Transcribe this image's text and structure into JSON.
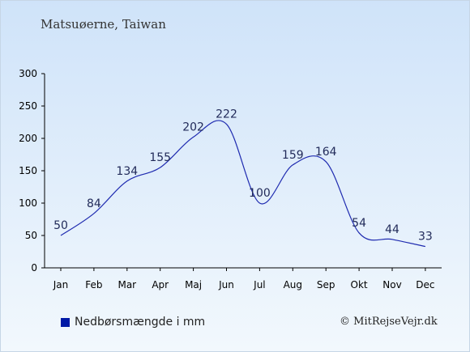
{
  "page": {
    "title": "Matsuøerne, Taiwan",
    "credit": "© MitRejseVejr.dk"
  },
  "legend": {
    "label": "Nedbørsmængde i mm"
  },
  "colors": {
    "line": "#1f2bb0",
    "swatch": "#0019a6",
    "axis": "#000000",
    "label": "#222b5a"
  },
  "chart_data": {
    "type": "line",
    "categories": [
      "Jan",
      "Feb",
      "Mar",
      "Apr",
      "Maj",
      "Jun",
      "Jul",
      "Aug",
      "Sep",
      "Okt",
      "Nov",
      "Dec"
    ],
    "series": [
      {
        "name": "Nedbørsmængde i mm",
        "values": [
          50,
          84,
          134,
          155,
          202,
          222,
          100,
          159,
          164,
          54,
          44,
          33
        ]
      }
    ],
    "yticks": [
      0,
      50,
      100,
      150,
      200,
      250,
      300
    ],
    "ylim": [
      0,
      300
    ],
    "grid": false,
    "legend_position": "bottom-left"
  }
}
